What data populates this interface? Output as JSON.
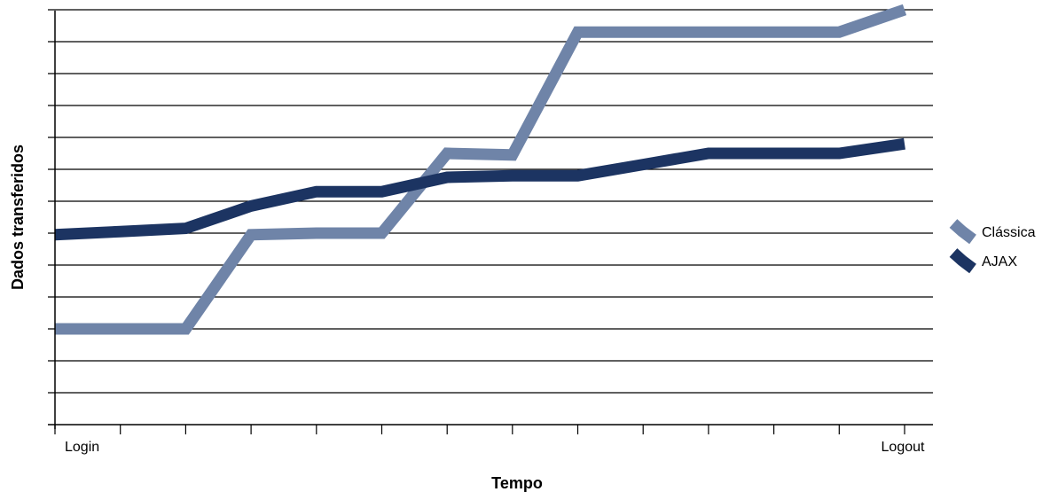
{
  "chart_data": {
    "type": "line",
    "title": "",
    "xlabel": "Tempo",
    "ylabel": "Dados transferidos",
    "x": [
      0,
      1,
      2,
      3,
      4,
      5,
      6,
      7,
      8,
      9,
      10,
      11,
      12,
      13
    ],
    "x_tick_labels": [
      {
        "x": 0,
        "label": "Login"
      },
      {
        "x": 13,
        "label": "Logout"
      }
    ],
    "ylim": [
      0,
      13
    ],
    "y_gridlines": 13,
    "grid": true,
    "legend_position": "right",
    "series": [
      {
        "name": "Clássica",
        "color": "#6f84a8",
        "values": [
          3.0,
          3.0,
          3.0,
          5.95,
          6.0,
          6.0,
          8.5,
          8.45,
          12.3,
          12.3,
          12.3,
          12.3,
          12.3,
          13.0
        ]
      },
      {
        "name": "AJAX",
        "color": "#1c3462",
        "values": [
          5.95,
          6.05,
          6.15,
          6.85,
          7.3,
          7.3,
          7.75,
          7.8,
          7.8,
          8.15,
          8.5,
          8.5,
          8.5,
          8.8
        ]
      }
    ]
  }
}
